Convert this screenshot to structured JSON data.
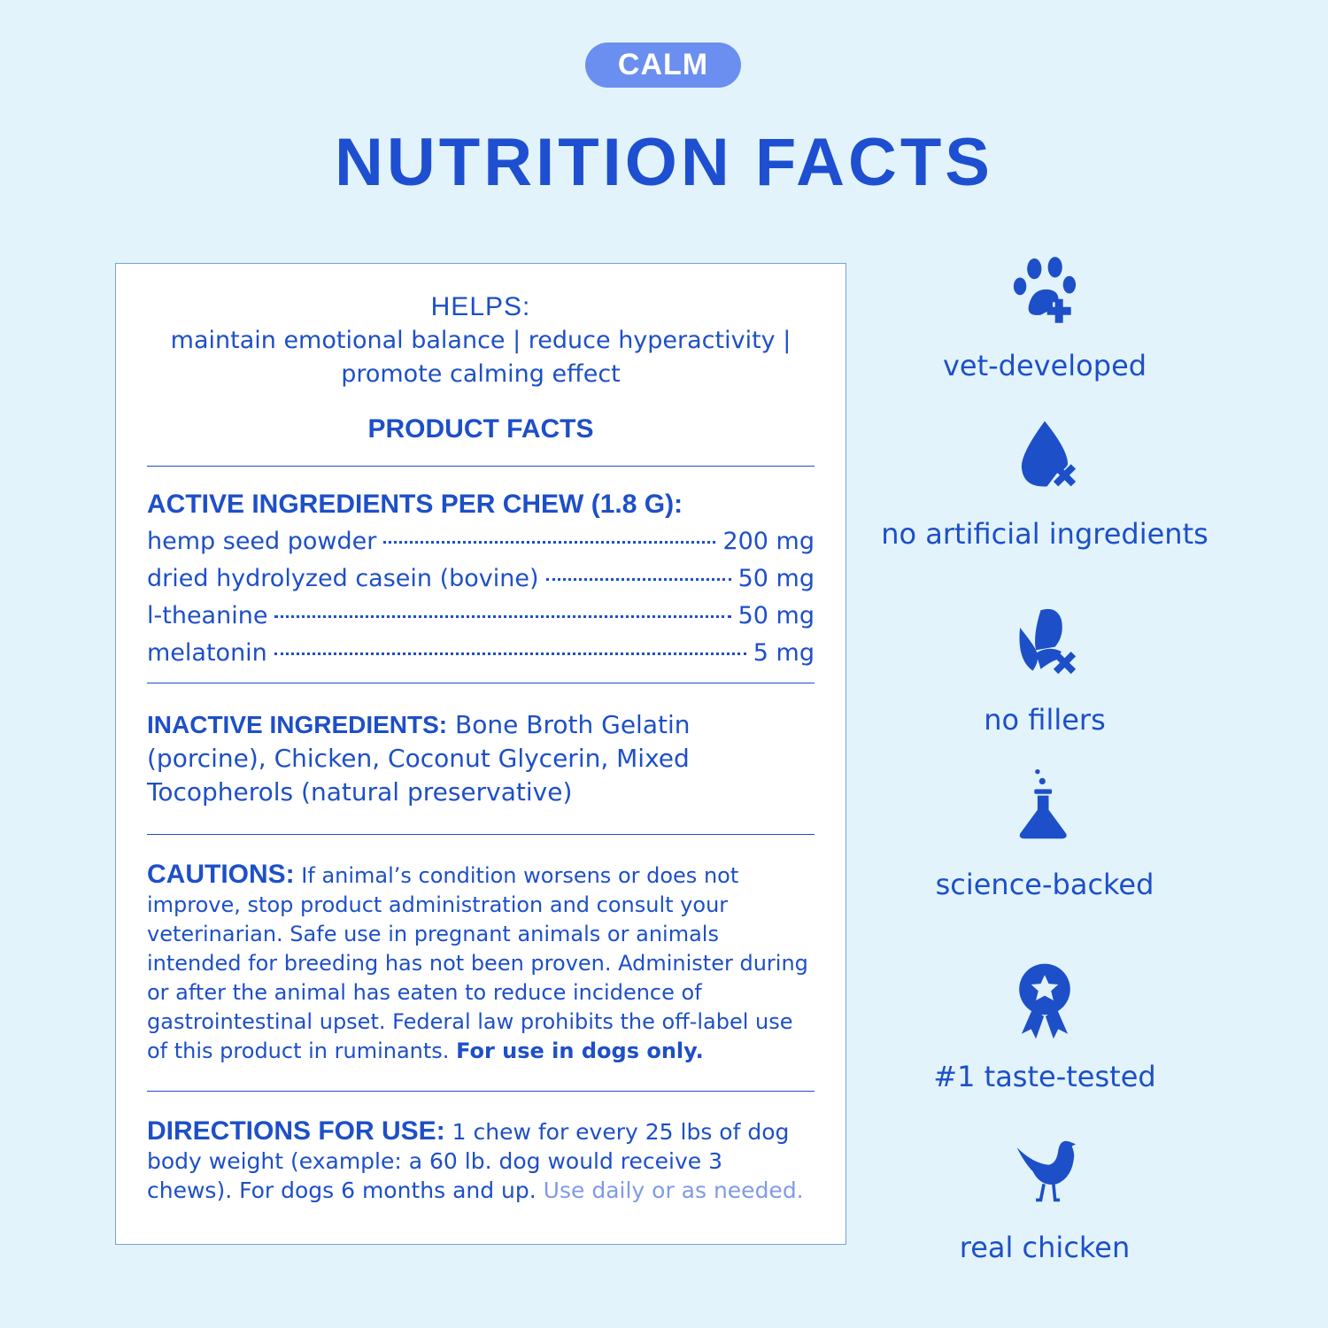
{
  "badge": "CALM",
  "title": "NUTRITION FACTS",
  "helps": {
    "heading": "HELPS:",
    "text": "maintain emotional balance | reduce hyperactivity | promote calming effect"
  },
  "product_facts": "PRODUCT FACTS",
  "active": {
    "heading": "ACTIVE INGREDIENTS PER CHEW (1.8 G):",
    "items": [
      {
        "name": "hemp seed powder",
        "amount": "200 mg"
      },
      {
        "name": "dried hydrolyzed casein (bovine)",
        "amount": "50 mg"
      },
      {
        "name": "l-theanine",
        "amount": "50 mg"
      },
      {
        "name": "melatonin",
        "amount": "5 mg"
      }
    ]
  },
  "inactive": {
    "heading": "INACTIVE INGREDIENTS:",
    "text": "Bone Broth Gelatin (porcine), Chicken, Coconut Glycerin, Mixed Tocopherols (natural preservative)"
  },
  "cautions": {
    "heading": "CAUTIONS:",
    "text": "If animal’s condition worsens or does not improve, stop product administration and consult your veterinarian. Safe use in pregnant animals or animals intended for breeding has not been proven. Administer during or after the animal has eaten to reduce incidence of gastrointestinal upset. Federal law prohibits the off-label use of this product in ruminants.",
    "bold": "For use in dogs only."
  },
  "directions": {
    "heading": "DIRECTIONS FOR USE:",
    "text": "1 chew for every 25 lbs of dog body weight (example: a 60 lb. dog would receive 3 chews). For dogs 6 months and up.",
    "highlight": "Use daily or as needed."
  },
  "features": [
    {
      "icon": "paw-plus-icon",
      "label": "vet-developed"
    },
    {
      "icon": "drop-x-icon",
      "label": "no artificial ingredients"
    },
    {
      "icon": "corn-x-icon",
      "label": "no fillers"
    },
    {
      "icon": "flask-icon",
      "label": "science-backed"
    },
    {
      "icon": "ribbon-star-icon",
      "label": "#1 taste-tested"
    },
    {
      "icon": "chicken-icon",
      "label": "real chicken"
    }
  ],
  "colors": {
    "background": "#e2f3fb",
    "text": "#1d4fc8",
    "badge": "#6b8ff0",
    "highlight": "#7f9be6"
  }
}
